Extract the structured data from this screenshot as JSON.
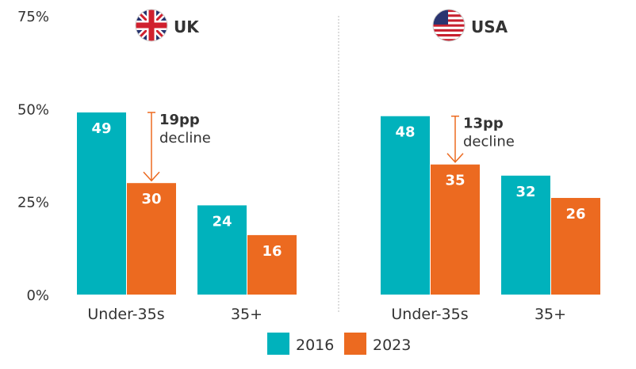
{
  "chart_data": {
    "type": "bar",
    "title": "",
    "xlabel": "",
    "ylabel": "",
    "ylim": [
      0,
      75
    ],
    "y_ticks": [
      "0%",
      "25%",
      "50%",
      "75%"
    ],
    "y_tick_values": [
      0,
      25,
      50,
      75
    ],
    "grid": false,
    "legend_position": "bottom-center",
    "colors": {
      "2016": "#00b2bc",
      "2023": "#ec6a20"
    },
    "series_names": [
      "2016",
      "2023"
    ],
    "groups": [
      {
        "name": "UK",
        "flag_icon": "uk-flag-icon",
        "categories": [
          "Under-35s",
          "35+"
        ],
        "series": [
          {
            "name": "2016",
            "values": [
              49,
              24
            ]
          },
          {
            "name": "2023",
            "values": [
              30,
              16
            ]
          }
        ],
        "annotation": {
          "bold": "19pp",
          "text": "decline",
          "from": 49,
          "to": 30
        }
      },
      {
        "name": "USA",
        "flag_icon": "usa-flag-icon",
        "categories": [
          "Under-35s",
          "35+"
        ],
        "series": [
          {
            "name": "2016",
            "values": [
              48,
              32
            ]
          },
          {
            "name": "2023",
            "values": [
              35,
              26
            ]
          }
        ],
        "annotation": {
          "bold": "13pp",
          "text": "decline",
          "from": 48,
          "to": 35
        }
      }
    ]
  }
}
